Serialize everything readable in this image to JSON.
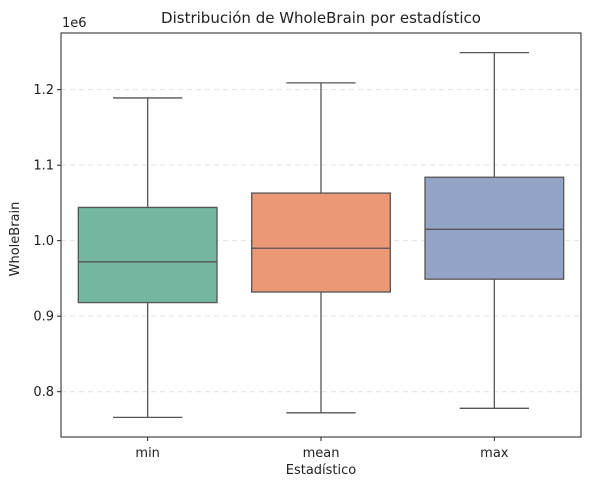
{
  "chart_data": {
    "type": "boxplot",
    "title": "Distribución de WholeBrain por estadístico",
    "xlabel": "Estadístico",
    "ylabel": "WholeBrain",
    "y_offset_label": "1e6",
    "ylim": [
      0.74,
      1.275
    ],
    "yticks": [
      0.8,
      0.9,
      1.0,
      1.1,
      1.2
    ],
    "ytick_labels": [
      "0.8",
      "0.9",
      "1.0",
      "1.1",
      "1.2"
    ],
    "grid": "y-dashed",
    "categories": [
      "min",
      "mean",
      "max"
    ],
    "boxes": [
      {
        "category": "min",
        "whisker_low": 0.766,
        "q1": 0.918,
        "median": 0.972,
        "q3": 1.044,
        "whisker_high": 1.189,
        "color": "#73b7a0"
      },
      {
        "category": "mean",
        "whisker_low": 0.772,
        "q1": 0.932,
        "median": 0.99,
        "q3": 1.063,
        "whisker_high": 1.209,
        "color": "#ea9876"
      },
      {
        "category": "max",
        "whisker_low": 0.778,
        "q1": 0.949,
        "median": 1.015,
        "q3": 1.084,
        "whisker_high": 1.249,
        "color": "#94a4c6"
      }
    ]
  }
}
